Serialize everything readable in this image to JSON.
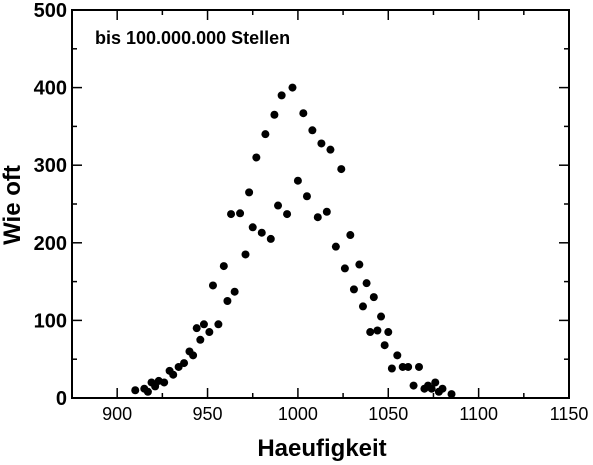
{
  "chart_data": {
    "type": "scatter",
    "title": "",
    "annotation": "bis 100.000.000 Stellen",
    "xlabel": "Haeufigkeit",
    "ylabel": "Wie oft",
    "xlim": [
      875,
      1150
    ],
    "ylim": [
      0,
      500
    ],
    "x_ticks": [
      900,
      950,
      1000,
      1050,
      1100,
      1150
    ],
    "x_tick_labels": [
      "900",
      "950",
      "1000",
      "1050",
      "1100",
      "1150"
    ],
    "y_ticks": [
      0,
      100,
      200,
      300,
      400,
      500
    ],
    "y_tick_labels": [
      "0",
      "100",
      "200",
      "300",
      "400",
      "500"
    ],
    "grid": false,
    "marker_color": "#000000",
    "points": [
      [
        910,
        10
      ],
      [
        915,
        12
      ],
      [
        917,
        8
      ],
      [
        919,
        20
      ],
      [
        921,
        15
      ],
      [
        923,
        22
      ],
      [
        926,
        20
      ],
      [
        929,
        35
      ],
      [
        931,
        30
      ],
      [
        934,
        40
      ],
      [
        937,
        45
      ],
      [
        940,
        60
      ],
      [
        942,
        55
      ],
      [
        944,
        90
      ],
      [
        946,
        75
      ],
      [
        948,
        95
      ],
      [
        951,
        85
      ],
      [
        953,
        145
      ],
      [
        956,
        95
      ],
      [
        959,
        170
      ],
      [
        961,
        125
      ],
      [
        963,
        237
      ],
      [
        965,
        137
      ],
      [
        968,
        238
      ],
      [
        971,
        185
      ],
      [
        973,
        265
      ],
      [
        975,
        220
      ],
      [
        977,
        310
      ],
      [
        980,
        213
      ],
      [
        982,
        340
      ],
      [
        985,
        205
      ],
      [
        987,
        365
      ],
      [
        989,
        248
      ],
      [
        991,
        390
      ],
      [
        994,
        237
      ],
      [
        997,
        400
      ],
      [
        1000,
        280
      ],
      [
        1003,
        367
      ],
      [
        1005,
        260
      ],
      [
        1008,
        345
      ],
      [
        1011,
        233
      ],
      [
        1013,
        328
      ],
      [
        1016,
        240
      ],
      [
        1018,
        320
      ],
      [
        1021,
        195
      ],
      [
        1024,
        295
      ],
      [
        1026,
        167
      ],
      [
        1029,
        210
      ],
      [
        1031,
        140
      ],
      [
        1034,
        172
      ],
      [
        1036,
        118
      ],
      [
        1038,
        148
      ],
      [
        1040,
        85
      ],
      [
        1042,
        130
      ],
      [
        1044,
        87
      ],
      [
        1046,
        105
      ],
      [
        1048,
        68
      ],
      [
        1050,
        85
      ],
      [
        1052,
        38
      ],
      [
        1055,
        55
      ],
      [
        1058,
        40
      ],
      [
        1061,
        40
      ],
      [
        1064,
        16
      ],
      [
        1067,
        40
      ],
      [
        1070,
        12
      ],
      [
        1072,
        16
      ],
      [
        1074,
        12
      ],
      [
        1076,
        20
      ],
      [
        1078,
        8
      ],
      [
        1080,
        12
      ],
      [
        1085,
        5
      ]
    ]
  }
}
